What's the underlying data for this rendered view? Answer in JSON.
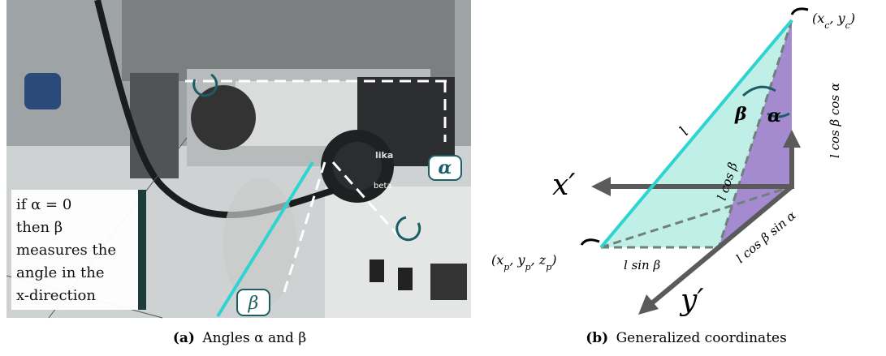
{
  "panel_a": {
    "photo_labels": {
      "encoder_brand": "lika",
      "encoder_name": "beta"
    },
    "alpha_badge": "α",
    "beta_badge": "β",
    "note_lines": [
      "if α = 0",
      "then β",
      "measures the",
      "angle in the",
      "x-direction"
    ],
    "caption_tag": "(a)",
    "caption_text": "Angles α and β"
  },
  "panel_b": {
    "top_point": [
      "(x",
      "c",
      ", y",
      "c",
      ")"
    ],
    "bottom_point": [
      "(x",
      "p",
      ", y",
      "p",
      ", z",
      "p",
      ")"
    ],
    "vertical_length": "l cos β cos α",
    "beta_angle": "β",
    "alpha_angle": "α",
    "rod_length": "l",
    "x_axis": "x′",
    "projection_length": "l cos β",
    "diagonal_length": "l cos β sin α",
    "horizontal_length": "l sin β",
    "y_axis": "y′",
    "caption_tag": "(b)",
    "caption_text": "Generalized coordinates"
  }
}
